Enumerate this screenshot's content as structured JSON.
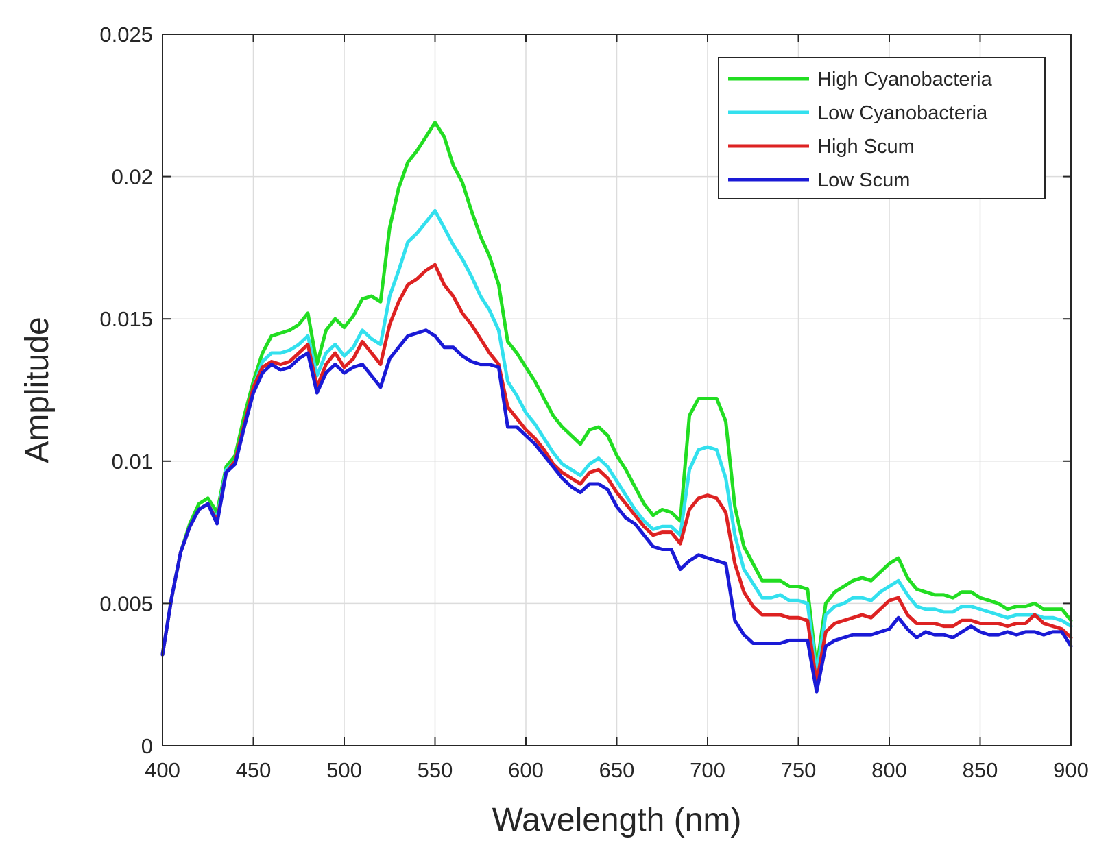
{
  "chart_data": {
    "type": "line",
    "title": "",
    "xlabel": "Wavelength (nm)",
    "ylabel": "Amplitude",
    "xlim": [
      400,
      900
    ],
    "ylim": [
      0,
      0.025
    ],
    "xticks": [
      400,
      450,
      500,
      550,
      600,
      650,
      700,
      750,
      800,
      850,
      900
    ],
    "yticks": [
      0,
      0.005,
      0.01,
      0.015,
      0.02,
      0.025
    ],
    "xtick_labels": [
      "400",
      "450",
      "500",
      "550",
      "600",
      "650",
      "700",
      "750",
      "800",
      "850",
      "900"
    ],
    "ytick_labels": [
      "0",
      "0.005",
      "0.01",
      "0.015",
      "0.02",
      "0.025"
    ],
    "grid": true,
    "legend_position": "top-right",
    "x": [
      400,
      405,
      410,
      415,
      420,
      425,
      430,
      435,
      440,
      445,
      450,
      455,
      460,
      465,
      470,
      475,
      480,
      485,
      490,
      495,
      500,
      505,
      510,
      515,
      520,
      525,
      530,
      535,
      540,
      545,
      550,
      555,
      560,
      565,
      570,
      575,
      580,
      585,
      590,
      595,
      600,
      605,
      610,
      615,
      620,
      625,
      630,
      635,
      640,
      645,
      650,
      655,
      660,
      665,
      670,
      675,
      680,
      685,
      690,
      695,
      700,
      705,
      710,
      715,
      720,
      725,
      730,
      735,
      740,
      745,
      750,
      755,
      760,
      765,
      770,
      775,
      780,
      785,
      790,
      795,
      800,
      805,
      810,
      815,
      820,
      825,
      830,
      835,
      840,
      845,
      850,
      855,
      860,
      865,
      870,
      875,
      880,
      885,
      890,
      895,
      900
    ],
    "series": [
      {
        "name": "High Cyanobacteria",
        "color": "#22dd22",
        "values": [
          0.0032,
          0.0052,
          0.0068,
          0.0078,
          0.0085,
          0.0087,
          0.0082,
          0.0098,
          0.0102,
          0.0116,
          0.0128,
          0.0138,
          0.0144,
          0.0145,
          0.0146,
          0.0148,
          0.0152,
          0.0134,
          0.0146,
          0.015,
          0.0147,
          0.0151,
          0.0157,
          0.0158,
          0.0156,
          0.0182,
          0.0196,
          0.0205,
          0.0209,
          0.0214,
          0.0219,
          0.0214,
          0.0204,
          0.0198,
          0.0188,
          0.0179,
          0.0172,
          0.0162,
          0.0142,
          0.0138,
          0.0133,
          0.0128,
          0.0122,
          0.0116,
          0.0112,
          0.0109,
          0.0106,
          0.0111,
          0.0112,
          0.0109,
          0.0102,
          0.0097,
          0.0091,
          0.0085,
          0.0081,
          0.0083,
          0.0082,
          0.0079,
          0.0116,
          0.0122,
          0.0122,
          0.0122,
          0.0114,
          0.0084,
          0.007,
          0.0064,
          0.0058,
          0.0058,
          0.0058,
          0.0056,
          0.0056,
          0.0055,
          0.0027,
          0.005,
          0.0054,
          0.0056,
          0.0058,
          0.0059,
          0.0058,
          0.0061,
          0.0064,
          0.0066,
          0.0059,
          0.0055,
          0.0054,
          0.0053,
          0.0053,
          0.0052,
          0.0054,
          0.0054,
          0.0052,
          0.0051,
          0.005,
          0.0048,
          0.0049,
          0.0049,
          0.005,
          0.0048,
          0.0048,
          0.0048,
          0.0044
        ]
      },
      {
        "name": "Low Cyanobacteria",
        "color": "#33e0ee",
        "values": [
          0.0032,
          0.0052,
          0.0068,
          0.0077,
          0.0083,
          0.0085,
          0.008,
          0.0097,
          0.01,
          0.0113,
          0.0126,
          0.0135,
          0.0138,
          0.0138,
          0.0139,
          0.0141,
          0.0144,
          0.013,
          0.0138,
          0.0141,
          0.0137,
          0.014,
          0.0146,
          0.0143,
          0.0141,
          0.0158,
          0.0167,
          0.0177,
          0.018,
          0.0184,
          0.0188,
          0.0182,
          0.0176,
          0.0171,
          0.0165,
          0.0158,
          0.0153,
          0.0146,
          0.0128,
          0.0123,
          0.0117,
          0.0113,
          0.0108,
          0.0103,
          0.0099,
          0.0097,
          0.0095,
          0.0099,
          0.0101,
          0.0098,
          0.0093,
          0.0088,
          0.0083,
          0.0079,
          0.0076,
          0.0077,
          0.0077,
          0.0074,
          0.0097,
          0.0104,
          0.0105,
          0.0104,
          0.0094,
          0.0074,
          0.0062,
          0.0057,
          0.0052,
          0.0052,
          0.0053,
          0.0051,
          0.0051,
          0.005,
          0.0025,
          0.0046,
          0.0049,
          0.005,
          0.0052,
          0.0052,
          0.0051,
          0.0054,
          0.0056,
          0.0058,
          0.0053,
          0.0049,
          0.0048,
          0.0048,
          0.0047,
          0.0047,
          0.0049,
          0.0049,
          0.0048,
          0.0047,
          0.0046,
          0.0045,
          0.0046,
          0.0046,
          0.0046,
          0.0045,
          0.0045,
          0.0044,
          0.0042
        ]
      },
      {
        "name": "High Scum",
        "color": "#dd2222",
        "values": [
          0.0032,
          0.0052,
          0.0068,
          0.0077,
          0.0083,
          0.0085,
          0.0079,
          0.0096,
          0.01,
          0.0113,
          0.0126,
          0.0133,
          0.0135,
          0.0134,
          0.0135,
          0.0138,
          0.0141,
          0.0126,
          0.0134,
          0.0138,
          0.0133,
          0.0136,
          0.0142,
          0.0138,
          0.0134,
          0.0148,
          0.0156,
          0.0162,
          0.0164,
          0.0167,
          0.0169,
          0.0162,
          0.0158,
          0.0152,
          0.0148,
          0.0143,
          0.0138,
          0.0134,
          0.0119,
          0.0115,
          0.0111,
          0.0108,
          0.0104,
          0.0099,
          0.0096,
          0.0094,
          0.0092,
          0.0096,
          0.0097,
          0.0094,
          0.0089,
          0.0085,
          0.0081,
          0.0077,
          0.0074,
          0.0075,
          0.0075,
          0.0071,
          0.0083,
          0.0087,
          0.0088,
          0.0087,
          0.0082,
          0.0064,
          0.0054,
          0.0049,
          0.0046,
          0.0046,
          0.0046,
          0.0045,
          0.0045,
          0.0044,
          0.0022,
          0.004,
          0.0043,
          0.0044,
          0.0045,
          0.0046,
          0.0045,
          0.0048,
          0.0051,
          0.0052,
          0.0046,
          0.0043,
          0.0043,
          0.0043,
          0.0042,
          0.0042,
          0.0044,
          0.0044,
          0.0043,
          0.0043,
          0.0043,
          0.0042,
          0.0043,
          0.0043,
          0.0046,
          0.0043,
          0.0042,
          0.0041,
          0.0038
        ]
      },
      {
        "name": "Low Scum",
        "color": "#1a1ad6",
        "values": [
          0.0032,
          0.0052,
          0.0068,
          0.0077,
          0.0083,
          0.0085,
          0.0078,
          0.0096,
          0.0099,
          0.0112,
          0.0124,
          0.0131,
          0.0134,
          0.0132,
          0.0133,
          0.0136,
          0.0138,
          0.0124,
          0.0131,
          0.0134,
          0.0131,
          0.0133,
          0.0134,
          0.013,
          0.0126,
          0.0136,
          0.014,
          0.0144,
          0.0145,
          0.0146,
          0.0144,
          0.014,
          0.014,
          0.0137,
          0.0135,
          0.0134,
          0.0134,
          0.0133,
          0.0112,
          0.0112,
          0.0109,
          0.0106,
          0.0102,
          0.0098,
          0.0094,
          0.0091,
          0.0089,
          0.0092,
          0.0092,
          0.009,
          0.0084,
          0.008,
          0.0078,
          0.0074,
          0.007,
          0.0069,
          0.0069,
          0.0062,
          0.0065,
          0.0067,
          0.0066,
          0.0065,
          0.0064,
          0.0044,
          0.0039,
          0.0036,
          0.0036,
          0.0036,
          0.0036,
          0.0037,
          0.0037,
          0.0037,
          0.0019,
          0.0035,
          0.0037,
          0.0038,
          0.0039,
          0.0039,
          0.0039,
          0.004,
          0.0041,
          0.0045,
          0.0041,
          0.0038,
          0.004,
          0.0039,
          0.0039,
          0.0038,
          0.004,
          0.0042,
          0.004,
          0.0039,
          0.0039,
          0.004,
          0.0039,
          0.004,
          0.004,
          0.0039,
          0.004,
          0.004,
          0.0035
        ]
      }
    ]
  }
}
